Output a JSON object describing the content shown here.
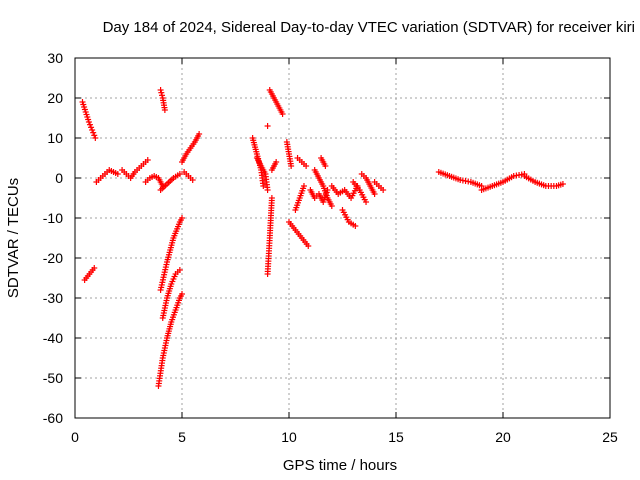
{
  "chart_data": {
    "type": "scatter",
    "title": "Day 184 of 2024, Sidereal Day-to-day VTEC variation (SDTVAR) for receiver kiri",
    "xlabel": "GPS time / hours",
    "ylabel": "SDTVAR / TECUs",
    "xlim": [
      0,
      25
    ],
    "ylim": [
      -60,
      30
    ],
    "xticks": [
      "0",
      "5",
      "10",
      "15",
      "20",
      "25"
    ],
    "yticks": [
      "30",
      "20",
      "10",
      "0",
      "-10",
      "-20",
      "-30",
      "-40",
      "-50",
      "-60"
    ],
    "grid": true,
    "marker": "+",
    "color": "#ff0000",
    "segments": [
      {
        "x": [
          0.35,
          0.5,
          0.65,
          0.8,
          0.95
        ],
        "y": [
          19,
          16.5,
          14,
          12,
          10
        ]
      },
      {
        "x": [
          0.45,
          0.6,
          0.75,
          0.9
        ],
        "y": [
          -25.5,
          -24.5,
          -23.5,
          -22.5
        ]
      },
      {
        "x": [
          1.0,
          1.2,
          1.4,
          1.6,
          1.8,
          2.0
        ],
        "y": [
          -1,
          0,
          1,
          2,
          1.5,
          1
        ]
      },
      {
        "x": [
          2.2,
          2.4,
          2.6,
          2.8,
          3.0,
          3.2,
          3.4
        ],
        "y": [
          2,
          1,
          0,
          1.5,
          2.5,
          3.5,
          4.5
        ]
      },
      {
        "x": [
          3.3,
          3.5,
          3.7,
          3.9,
          4.1
        ],
        "y": [
          -1,
          0,
          0.5,
          0,
          -2
        ]
      },
      {
        "x": [
          4.0,
          4.1,
          4.2
        ],
        "y": [
          22,
          20,
          17
        ]
      },
      {
        "x": [
          4.0,
          4.3,
          4.6,
          4.9,
          5.0
        ],
        "y": [
          -28,
          -21,
          -15,
          -11,
          -10
        ]
      },
      {
        "x": [
          4.1,
          4.3,
          4.5,
          4.7,
          4.9
        ],
        "y": [
          -35,
          -30,
          -26.5,
          -24,
          -23
        ]
      },
      {
        "x": [
          3.9,
          4.1,
          4.3,
          4.5,
          4.7,
          4.9,
          5.0
        ],
        "y": [
          -52,
          -45,
          -40,
          -36,
          -33,
          -30,
          -29
        ]
      },
      {
        "x": [
          4.0,
          4.3,
          4.6,
          4.9
        ],
        "y": [
          -3,
          -1.5,
          0,
          1
        ]
      },
      {
        "x": [
          5.0,
          5.2,
          5.4,
          5.6,
          5.8
        ],
        "y": [
          4,
          6,
          7.5,
          9,
          11
        ]
      },
      {
        "x": [
          5.1,
          5.3,
          5.5
        ],
        "y": [
          1.5,
          0.5,
          -0.5
        ]
      },
      {
        "x": [
          8.3,
          8.5,
          8.7,
          8.8
        ],
        "y": [
          10,
          6,
          2,
          -2
        ]
      },
      {
        "x": [
          8.5,
          8.7,
          8.9,
          9.0
        ],
        "y": [
          5,
          3,
          1,
          -3
        ]
      },
      {
        "x": [
          9.1,
          9.3,
          9.5,
          9.7
        ],
        "y": [
          22,
          20,
          18,
          16
        ]
      },
      {
        "x": [
          9.0,
          9.1,
          9.2
        ],
        "y": [
          -24,
          -15,
          -5
        ]
      },
      {
        "x": [
          9.2,
          9.4
        ],
        "y": [
          2,
          4
        ]
      },
      {
        "x": [
          9.0
        ],
        "y": [
          13
        ]
      },
      {
        "x": [
          9.9,
          10.0,
          10.1
        ],
        "y": [
          9,
          6,
          3
        ]
      },
      {
        "x": [
          10.0,
          10.3,
          10.6,
          10.9
        ],
        "y": [
          -11,
          -13,
          -15,
          -17
        ]
      },
      {
        "x": [
          10.3,
          10.5,
          10.7
        ],
        "y": [
          -8,
          -5,
          -2
        ]
      },
      {
        "x": [
          10.4,
          10.6,
          10.8
        ],
        "y": [
          5,
          4,
          3
        ]
      },
      {
        "x": [
          11.0,
          11.2,
          11.4,
          11.6,
          11.8
        ],
        "y": [
          -3,
          -5,
          -4,
          -6,
          -3
        ]
      },
      {
        "x": [
          11.2,
          11.4,
          11.6,
          11.8,
          12.0
        ],
        "y": [
          2,
          0,
          -2,
          -5,
          -7
        ]
      },
      {
        "x": [
          11.5,
          11.7
        ],
        "y": [
          5,
          3
        ]
      },
      {
        "x": [
          12.0,
          12.3,
          12.6,
          12.9,
          13.2
        ],
        "y": [
          -2,
          -4,
          -3,
          -5,
          -2
        ]
      },
      {
        "x": [
          12.5,
          12.8,
          13.1
        ],
        "y": [
          -8,
          -11,
          -12
        ]
      },
      {
        "x": [
          13.0,
          13.3,
          13.6
        ],
        "y": [
          -1,
          -3,
          -6
        ]
      },
      {
        "x": [
          13.4,
          13.6,
          13.8,
          14.0
        ],
        "y": [
          1,
          0,
          -2,
          -4
        ]
      },
      {
        "x": [
          14.0,
          14.2,
          14.4
        ],
        "y": [
          -1,
          -2,
          -3
        ]
      },
      {
        "x": [
          17.0,
          17.5,
          18.0,
          18.5,
          19.0
        ],
        "y": [
          1.5,
          0.5,
          -0.5,
          -1,
          -2
        ]
      },
      {
        "x": [
          19.0,
          19.5,
          20.0,
          20.5,
          21.0
        ],
        "y": [
          -3,
          -2,
          -1,
          0.5,
          1
        ]
      },
      {
        "x": [
          21.0,
          21.5,
          22.0,
          22.5,
          22.8
        ],
        "y": [
          0.5,
          -1,
          -2,
          -2,
          -1.5
        ]
      }
    ]
  }
}
